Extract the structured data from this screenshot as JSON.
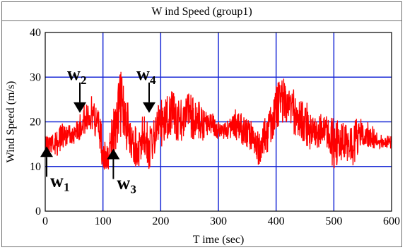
{
  "chart_data": {
    "type": "line",
    "title": "W ind Speed (group1)",
    "xlabel": "T ime (sec)",
    "ylabel": "Wind Speed (m/s)",
    "xlim": [
      0,
      600
    ],
    "ylim": [
      0,
      40
    ],
    "xticks": [
      "0",
      "100",
      "200",
      "300",
      "400",
      "500",
      "600"
    ],
    "yticks": [
      "0",
      "10",
      "20",
      "30",
      "40"
    ],
    "grid": true,
    "grid_color": "#1a2ad6",
    "series_color": "#ff0000",
    "series": [
      {
        "x": [
          0,
          10,
          20,
          30,
          40,
          50,
          60,
          70,
          80,
          90,
          100,
          110,
          120,
          130,
          140,
          150,
          160,
          170,
          180,
          190,
          200,
          210,
          220,
          230,
          240,
          250,
          260,
          270,
          280,
          290,
          300,
          310,
          320,
          330,
          340,
          350,
          360,
          370,
          380,
          390,
          400,
          410,
          420,
          430,
          440,
          450,
          460,
          470,
          480,
          490,
          500,
          510,
          520,
          530,
          540,
          550,
          560,
          570,
          580,
          590,
          600
        ],
        "y": [
          15,
          16,
          15,
          17,
          18,
          17,
          19,
          21,
          22,
          20,
          14,
          11,
          22,
          28,
          20,
          15,
          13,
          16,
          14,
          18,
          20,
          21,
          22,
          20,
          21,
          22,
          21,
          20,
          20,
          19,
          18,
          18,
          19,
          20,
          19,
          18,
          17,
          14,
          16,
          19,
          24,
          25,
          26,
          23,
          21,
          20,
          18,
          17,
          18,
          17,
          16,
          15,
          15,
          14,
          16,
          17,
          17,
          16,
          16,
          15,
          16
        ],
        "y_min": [
          12,
          13,
          12,
          14,
          15,
          15,
          16,
          17,
          18,
          16,
          9,
          8,
          13,
          16,
          14,
          11,
          9,
          12,
          8,
          13,
          14,
          15,
          16,
          15,
          16,
          16,
          16,
          15,
          17,
          17,
          16,
          16,
          16,
          16,
          15,
          14,
          13,
          10,
          12,
          14,
          18,
          19,
          20,
          17,
          16,
          15,
          13,
          13,
          14,
          13,
          9,
          11,
          11,
          9,
          12,
          14,
          14,
          14,
          14,
          14,
          14
        ],
        "y_max": [
          17,
          19,
          18,
          20,
          20,
          19,
          22,
          25,
          26,
          24,
          19,
          16,
          27,
          33,
          26,
          21,
          18,
          22,
          20,
          24,
          25,
          26,
          27,
          25,
          26,
          27,
          26,
          24,
          22,
          22,
          20,
          20,
          21,
          23,
          22,
          21,
          20,
          18,
          21,
          24,
          29,
          30,
          31,
          28,
          26,
          25,
          23,
          21,
          22,
          21,
          21,
          20,
          20,
          19,
          21,
          21,
          20,
          19,
          18,
          17,
          17
        ]
      }
    ],
    "annotations": [
      {
        "letter": "w",
        "sub": "1",
        "x": 0,
        "y": 14.5,
        "arrow": "up"
      },
      {
        "letter": "w",
        "sub": "2",
        "x": 60,
        "y": 22,
        "arrow": "down"
      },
      {
        "letter": "w",
        "sub": "3",
        "x": 118,
        "y": 14,
        "arrow": "up"
      },
      {
        "letter": "w",
        "sub": "4",
        "x": 180,
        "y": 22,
        "arrow": "down"
      }
    ]
  }
}
